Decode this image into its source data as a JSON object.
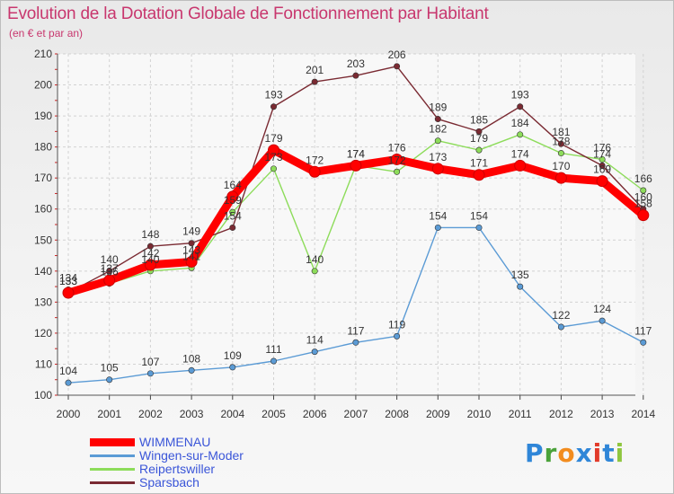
{
  "title": "Evolution de la Dotation Globale de Fonctionnement par Habitant",
  "subtitle": "(en € et par an)",
  "logo": {
    "text": "Proxiti",
    "colors": [
      "#2f86d8",
      "#4aa23a",
      "#f28c1e",
      "#2f86d8",
      "#e23b2a",
      "#2f86d8",
      "#8fc63f"
    ]
  },
  "chart_data": {
    "type": "line",
    "title": "Evolution de la Dotation Globale de Fonctionnement par Habitant",
    "subtitle": "(en € et par an)",
    "x": [
      "2000",
      "2001",
      "2002",
      "2003",
      "2004",
      "2005",
      "2006",
      "2007",
      "2008",
      "2009",
      "2010",
      "2011",
      "2012",
      "2013",
      "2014"
    ],
    "ylim": [
      100,
      210
    ],
    "yticks": [
      100,
      110,
      120,
      130,
      140,
      150,
      160,
      170,
      180,
      190,
      200,
      210
    ],
    "grid": true,
    "legend_position": "bottom-left",
    "series": [
      {
        "name": "WIMMENAU",
        "color": "#ff0000",
        "values": [
          133,
          137,
          142,
          143,
          164,
          179,
          172,
          174,
          176,
          173,
          171,
          174,
          170,
          169,
          158
        ]
      },
      {
        "name": "Wingen-sur-Moder",
        "color": "#5b9bd5",
        "values": [
          104,
          105,
          107,
          108,
          109,
          111,
          114,
          117,
          119,
          154,
          154,
          135,
          122,
          124,
          117
        ]
      },
      {
        "name": "Reipertswiller",
        "color": "#8ddc5a",
        "values": [
          134,
          136,
          140,
          141,
          159,
          173,
          140,
          174,
          172,
          182,
          179,
          184,
          178,
          176,
          166
        ]
      },
      {
        "name": "Sparsbach",
        "color": "#7a2a32",
        "values": [
          133,
          140,
          148,
          149,
          154,
          193,
          201,
          203,
          206,
          189,
          185,
          193,
          181,
          174,
          160
        ]
      }
    ]
  }
}
